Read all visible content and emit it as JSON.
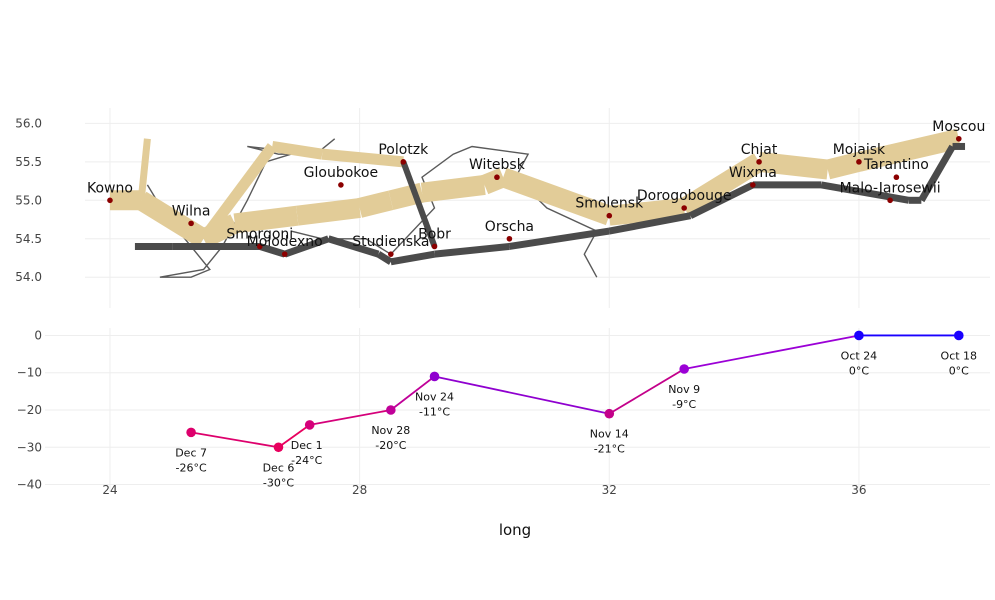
{
  "chart_data": [
    {
      "type": "map",
      "yticks": [
        54.0,
        54.5,
        55.0,
        55.5,
        56.0
      ],
      "ytick_labels": [
        "54.0",
        "54.5",
        "55.0",
        "55.5",
        "56.0"
      ],
      "xrange": [
        23.6,
        38.1
      ],
      "yrange": [
        53.6,
        56.2
      ],
      "grid": true,
      "colors": {
        "advance": "#e2cc98",
        "retreat": "#4b4b4b",
        "city": "#8b0000",
        "river": "#5a5a5a"
      },
      "advance_path": [
        {
          "x": 24.0,
          "y": 55.0
        },
        {
          "x": 24.5,
          "y": 55.0
        },
        {
          "x": 25.5,
          "y": 54.5
        },
        {
          "x": 26.0,
          "y": 54.7
        },
        {
          "x": 27.0,
          "y": 54.8
        },
        {
          "x": 28.0,
          "y": 54.9
        },
        {
          "x": 28.5,
          "y": 55.0
        },
        {
          "x": 29.0,
          "y": 55.1
        },
        {
          "x": 30.0,
          "y": 55.2
        },
        {
          "x": 30.3,
          "y": 55.3
        },
        {
          "x": 32.0,
          "y": 54.8
        },
        {
          "x": 33.2,
          "y": 54.9
        },
        {
          "x": 34.4,
          "y": 55.5
        },
        {
          "x": 35.5,
          "y": 55.4
        },
        {
          "x": 36.0,
          "y": 55.5
        },
        {
          "x": 37.6,
          "y": 55.8
        }
      ],
      "advance_branch": [
        {
          "x": 24.6,
          "y": 55.8
        },
        {
          "x": 24.5,
          "y": 55.0
        }
      ],
      "advance_branch2": [
        {
          "x": 25.5,
          "y": 54.5
        },
        {
          "x": 26.6,
          "y": 55.7
        },
        {
          "x": 27.4,
          "y": 55.6
        },
        {
          "x": 28.7,
          "y": 55.5
        }
      ],
      "retreat_path": [
        {
          "x": 37.7,
          "y": 55.7
        },
        {
          "x": 37.5,
          "y": 55.7
        },
        {
          "x": 37.0,
          "y": 55.0
        },
        {
          "x": 36.8,
          "y": 55.0
        },
        {
          "x": 35.4,
          "y": 55.2
        },
        {
          "x": 34.3,
          "y": 55.2
        },
        {
          "x": 33.3,
          "y": 54.8
        },
        {
          "x": 32.0,
          "y": 54.6
        },
        {
          "x": 30.4,
          "y": 54.4
        },
        {
          "x": 29.2,
          "y": 54.3
        },
        {
          "x": 28.5,
          "y": 54.2
        },
        {
          "x": 28.3,
          "y": 54.3
        },
        {
          "x": 27.5,
          "y": 54.5
        },
        {
          "x": 26.8,
          "y": 54.3
        },
        {
          "x": 26.4,
          "y": 54.4
        },
        {
          "x": 25.0,
          "y": 54.4
        },
        {
          "x": 24.4,
          "y": 54.4
        }
      ],
      "retreat_branch": [
        {
          "x": 28.7,
          "y": 55.5
        },
        {
          "x": 29.2,
          "y": 54.4
        }
      ],
      "river": [
        {
          "x": 24.6,
          "y": 55.2
        },
        {
          "x": 24.9,
          "y": 54.8
        },
        {
          "x": 25.6,
          "y": 54.1
        },
        {
          "x": 25.3,
          "y": 54.0
        },
        {
          "x": 24.8,
          "y": 54.0
        },
        {
          "x": 25.5,
          "y": 54.1
        },
        {
          "x": 25.8,
          "y": 54.4
        },
        {
          "x": 26.2,
          "y": 55.0
        },
        {
          "x": 26.5,
          "y": 55.5
        },
        {
          "x": 26.9,
          "y": 55.6
        },
        {
          "x": 26.7,
          "y": 55.6
        },
        {
          "x": 26.2,
          "y": 55.7
        },
        {
          "x": 27.3,
          "y": 55.6
        },
        {
          "x": 27.6,
          "y": 55.8
        }
      ],
      "river2": [
        {
          "x": 26.9,
          "y": 54.6
        },
        {
          "x": 27.4,
          "y": 54.5
        },
        {
          "x": 28.1,
          "y": 54.5
        },
        {
          "x": 28.5,
          "y": 54.3
        },
        {
          "x": 29.2,
          "y": 54.9
        },
        {
          "x": 29.0,
          "y": 55.3
        },
        {
          "x": 29.5,
          "y": 55.6
        },
        {
          "x": 29.8,
          "y": 55.7
        },
        {
          "x": 30.7,
          "y": 55.6
        },
        {
          "x": 30.5,
          "y": 55.3
        },
        {
          "x": 31.0,
          "y": 54.9
        },
        {
          "x": 31.8,
          "y": 54.6
        },
        {
          "x": 31.6,
          "y": 54.3
        },
        {
          "x": 31.8,
          "y": 54.0
        }
      ],
      "cities": [
        {
          "name": "Kowno",
          "x": 24.0,
          "y": 55.0
        },
        {
          "name": "Wilna",
          "x": 25.3,
          "y": 54.7
        },
        {
          "name": "Smorgoni",
          "x": 26.4,
          "y": 54.4
        },
        {
          "name": "Molodexno",
          "x": 26.8,
          "y": 54.3
        },
        {
          "name": "Gloubokoe",
          "x": 27.7,
          "y": 55.2
        },
        {
          "name": "Studienska",
          "x": 28.5,
          "y": 54.3
        },
        {
          "name": "Polotzk",
          "x": 28.7,
          "y": 55.5
        },
        {
          "name": "Bobr",
          "x": 29.2,
          "y": 54.4
        },
        {
          "name": "Witebsk",
          "x": 30.2,
          "y": 55.3
        },
        {
          "name": "Orscha",
          "x": 30.4,
          "y": 54.5
        },
        {
          "name": "Smolensk",
          "x": 32.0,
          "y": 54.8
        },
        {
          "name": "Dorogobouge",
          "x": 33.2,
          "y": 54.9
        },
        {
          "name": "Wixma",
          "x": 34.3,
          "y": 55.2
        },
        {
          "name": "Chjat",
          "x": 34.4,
          "y": 55.5
        },
        {
          "name": "Mojaisk",
          "x": 36.0,
          "y": 55.5
        },
        {
          "name": "Tarantino",
          "x": 36.6,
          "y": 55.3
        },
        {
          "name": "Malo-Jarosewii",
          "x": 36.5,
          "y": 55.0
        },
        {
          "name": "Moscou",
          "x": 37.6,
          "y": 55.8
        }
      ]
    },
    {
      "type": "line",
      "xlabel": "long",
      "xticks": [
        24,
        28,
        32,
        36
      ],
      "xtick_labels": [
        "24",
        "28",
        "32",
        "36"
      ],
      "yticks": [
        0,
        -10,
        -20,
        -30,
        -40
      ],
      "ytick_labels": [
        "0",
        "−10",
        "−20",
        "−30",
        "−40"
      ],
      "xrange": [
        23.6,
        38.1
      ],
      "yrange": [
        -42,
        2
      ],
      "grid": true,
      "points": [
        {
          "x": 37.6,
          "y": 0,
          "date": "Oct 18",
          "temp": "0°C",
          "color": "#1a00ff"
        },
        {
          "x": 36.0,
          "y": 0,
          "date": "Oct 24",
          "temp": "0°C",
          "color": "#1a00ff"
        },
        {
          "x": 33.2,
          "y": -9,
          "date": "Nov 9",
          "temp": "-9°C",
          "color": "#9b00d6"
        },
        {
          "x": 32.0,
          "y": -21,
          "date": "Nov 14",
          "temp": "-21°C",
          "color": "#c3008a"
        },
        {
          "x": 29.2,
          "y": -11,
          "date": "Nov 24",
          "temp": "-11°C",
          "color": "#8f00cf"
        },
        {
          "x": 28.5,
          "y": -20,
          "date": "Nov 28",
          "temp": "-20°C",
          "color": "#c00098"
        },
        {
          "x": 27.2,
          "y": -24,
          "date": "Dec 1",
          "temp": "-24°C",
          "color": "#d5007a"
        },
        {
          "x": 26.7,
          "y": -30,
          "date": "Dec 6",
          "temp": "-30°C",
          "color": "#e8005e"
        },
        {
          "x": 25.3,
          "y": -26,
          "date": "Dec 7",
          "temp": "-26°C",
          "color": "#dd006c"
        }
      ]
    }
  ]
}
